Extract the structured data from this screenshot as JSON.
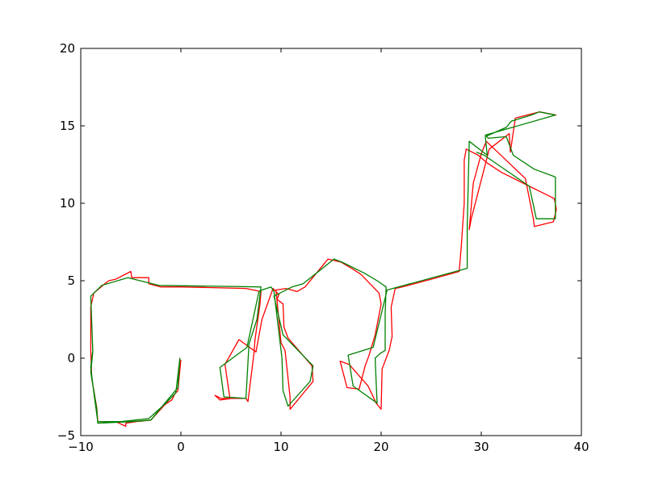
{
  "chart_data": {
    "type": "line",
    "title": "",
    "xlabel": "",
    "ylabel": "",
    "xlim": [
      -10,
      40
    ],
    "ylim": [
      -5,
      20
    ],
    "grid": false,
    "x_ticks": [
      -10,
      0,
      10,
      20,
      30,
      40
    ],
    "x_tick_labels": [
      "−10",
      "0",
      "10",
      "20",
      "30",
      "40"
    ],
    "y_ticks": [
      -5,
      0,
      5,
      10,
      15,
      20
    ],
    "y_tick_labels": [
      "−5",
      "0",
      "5",
      "10",
      "15",
      "20"
    ],
    "series": [
      {
        "color": "#ff0000",
        "points": [
          [
            0.0,
            -0.1
          ],
          [
            -0.3,
            -2.1
          ],
          [
            -0.6,
            -2.3
          ],
          [
            -0.9,
            -2.7
          ],
          [
            -1.6,
            -3.0
          ],
          [
            -3.0,
            -4.0
          ],
          [
            -4.5,
            -4.1
          ],
          [
            -5.5,
            -4.2
          ],
          [
            -5.5,
            -4.4
          ],
          [
            -6.5,
            -4.1
          ],
          [
            -8.3,
            -4.1
          ],
          [
            -8.4,
            -3.2
          ],
          [
            -8.9,
            -1.3
          ],
          [
            -9.0,
            0.5
          ],
          [
            -9.0,
            3.3
          ],
          [
            -8.7,
            4.2
          ],
          [
            -7.6,
            4.8
          ],
          [
            -7.2,
            5.0
          ],
          [
            -6.5,
            5.1
          ],
          [
            -5.0,
            5.6
          ],
          [
            -4.9,
            5.2
          ],
          [
            -3.2,
            5.2
          ],
          [
            -3.2,
            4.8
          ],
          [
            -2.0,
            4.6
          ],
          [
            0.0,
            4.6
          ],
          [
            6.5,
            4.5
          ],
          [
            8.0,
            4.3
          ],
          [
            7.9,
            3.5
          ],
          [
            7.4,
            1.2
          ],
          [
            7.3,
            0.3
          ],
          [
            6.7,
            -2.8
          ],
          [
            6.5,
            -2.6
          ],
          [
            5.1,
            -2.6
          ],
          [
            3.9,
            -2.7
          ],
          [
            3.4,
            -2.4
          ],
          [
            4.0,
            -2.6
          ],
          [
            4.9,
            -2.6
          ],
          [
            4.4,
            -0.4
          ],
          [
            5.8,
            1.2
          ],
          [
            7.5,
            0.4
          ],
          [
            8.1,
            2.5
          ],
          [
            9.2,
            4.5
          ],
          [
            9.8,
            4.1
          ],
          [
            9.6,
            3.8
          ],
          [
            10.2,
            3.5
          ],
          [
            10.3,
            2.0
          ],
          [
            10.7,
            1.3
          ],
          [
            13.1,
            -0.5
          ],
          [
            13.2,
            -1.5
          ],
          [
            10.9,
            -3.3
          ],
          [
            10.9,
            -2.5
          ],
          [
            10.4,
            0.5
          ],
          [
            10.0,
            1.0
          ],
          [
            9.5,
            4.4
          ],
          [
            10.5,
            4.5
          ],
          [
            11.6,
            4.3
          ],
          [
            12.4,
            4.6
          ],
          [
            14.7,
            6.4
          ],
          [
            16.0,
            6.2
          ],
          [
            17.3,
            5.7
          ],
          [
            18.0,
            5.4
          ],
          [
            19.8,
            4.2
          ],
          [
            20.0,
            3.5
          ],
          [
            19.4,
            1.5
          ],
          [
            18.8,
            0.2
          ],
          [
            18.4,
            -0.5
          ],
          [
            17.8,
            -2.0
          ],
          [
            16.6,
            -1.9
          ],
          [
            15.9,
            -0.2
          ],
          [
            16.8,
            -0.4
          ],
          [
            18.7,
            -1.8
          ],
          [
            19.5,
            -2.9
          ],
          [
            20.0,
            -3.3
          ],
          [
            20.1,
            -0.7
          ],
          [
            20.8,
            0.5
          ],
          [
            21.1,
            1.4
          ],
          [
            21.0,
            3.3
          ],
          [
            21.4,
            4.5
          ],
          [
            22.1,
            4.6
          ],
          [
            25.0,
            5.1
          ],
          [
            27.8,
            5.6
          ],
          [
            28.0,
            7.2
          ],
          [
            28.3,
            10.0
          ],
          [
            28.3,
            12.8
          ],
          [
            28.5,
            13.5
          ],
          [
            29.7,
            13.1
          ],
          [
            30.6,
            12.6
          ],
          [
            32.0,
            12.0
          ],
          [
            34.5,
            11.2
          ],
          [
            37.3,
            10.3
          ],
          [
            37.5,
            9.6
          ],
          [
            37.2,
            8.8
          ],
          [
            35.3,
            8.5
          ],
          [
            35.2,
            9.0
          ],
          [
            34.4,
            11.6
          ],
          [
            30.5,
            14.0
          ],
          [
            30.0,
            13.2
          ],
          [
            29.2,
            11.3
          ],
          [
            28.8,
            8.3
          ],
          [
            29.0,
            9.0
          ],
          [
            30.8,
            13.5
          ],
          [
            32.8,
            14.5
          ],
          [
            32.9,
            13.3
          ],
          [
            33.4,
            15.5
          ],
          [
            35.8,
            15.9
          ],
          [
            37.5,
            15.7
          ]
        ]
      },
      {
        "color": "#008000",
        "points": [
          [
            -9.0,
            4.0
          ],
          [
            -8.8,
            0.5
          ],
          [
            -9.0,
            -0.6
          ],
          [
            -8.7,
            -2.2
          ],
          [
            -8.3,
            -4.1
          ],
          [
            -6.0,
            -4.1
          ],
          [
            -3.2,
            -3.9
          ],
          [
            -1.5,
            -2.9
          ],
          [
            -0.6,
            -2.3
          ],
          [
            -0.5,
            -2.2
          ],
          [
            -0.1,
            0.0
          ],
          [
            -0.3,
            -1.9
          ],
          [
            -1.6,
            -2.9
          ],
          [
            -3.0,
            -4.0
          ],
          [
            -5.0,
            -4.1
          ],
          [
            -8.3,
            -4.2
          ],
          [
            -8.4,
            -3.3
          ],
          [
            -9.0,
            -0.9
          ],
          [
            -8.8,
            0.4
          ],
          [
            -9.0,
            4.0
          ],
          [
            -7.9,
            4.7
          ],
          [
            -5.3,
            5.2
          ],
          [
            -2.2,
            4.7
          ],
          [
            8.0,
            4.6
          ],
          [
            7.6,
            2.5
          ],
          [
            6.8,
            0.9
          ],
          [
            6.5,
            -2.6
          ],
          [
            4.3,
            -2.5
          ],
          [
            3.9,
            -0.6
          ],
          [
            6.6,
            0.7
          ],
          [
            7.8,
            4.3
          ],
          [
            8.1,
            4.4
          ],
          [
            9.0,
            4.6
          ],
          [
            9.3,
            4.3
          ],
          [
            10.1,
            0.0
          ],
          [
            10.2,
            -2.1
          ],
          [
            10.7,
            -3.1
          ],
          [
            12.9,
            -1.5
          ],
          [
            13.2,
            -0.5
          ],
          [
            10.2,
            1.5
          ],
          [
            9.3,
            4.0
          ],
          [
            11.1,
            4.6
          ],
          [
            12.2,
            4.8
          ],
          [
            15.3,
            6.4
          ],
          [
            16.1,
            6.2
          ],
          [
            18.3,
            5.5
          ],
          [
            19.6,
            5.0
          ],
          [
            20.5,
            4.6
          ],
          [
            20.4,
            2.9
          ],
          [
            20.4,
            0.5
          ],
          [
            19.9,
            0.3
          ],
          [
            19.4,
            0.0
          ],
          [
            19.5,
            -1.5
          ],
          [
            19.6,
            -2.9
          ],
          [
            17.2,
            -1.8
          ],
          [
            16.7,
            0.2
          ],
          [
            19.2,
            0.7
          ],
          [
            20.6,
            4.4
          ],
          [
            28.6,
            5.8
          ],
          [
            28.6,
            8.5
          ],
          [
            28.8,
            14.0
          ],
          [
            30.6,
            13.1
          ],
          [
            30.4,
            14.3
          ],
          [
            32.5,
            14.9
          ],
          [
            33.0,
            15.3
          ],
          [
            35.0,
            15.7
          ],
          [
            35.8,
            15.9
          ],
          [
            37.4,
            15.7
          ],
          [
            30.4,
            14.4
          ],
          [
            30.7,
            14.2
          ],
          [
            32.5,
            14.3
          ],
          [
            33.2,
            13.1
          ],
          [
            35.3,
            12.2
          ],
          [
            37.4,
            11.7
          ],
          [
            37.4,
            9.0
          ],
          [
            35.5,
            9.0
          ],
          [
            34.8,
            11.1
          ],
          [
            30.3,
            13.1
          ],
          [
            29.5,
            13.3
          ]
        ]
      }
    ]
  }
}
